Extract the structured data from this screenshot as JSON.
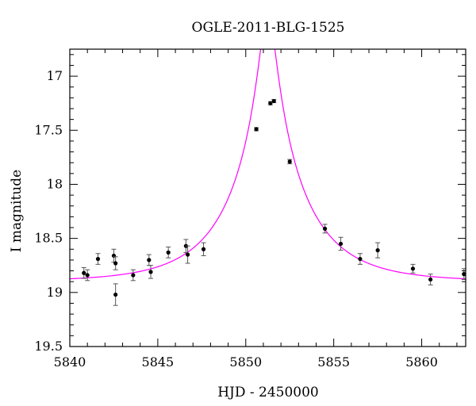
{
  "chart_data": {
    "type": "scatter",
    "title": "OGLE-2011-BLG-1525",
    "xlabel": "HJD - 2450000",
    "ylabel": "I magnitude",
    "xlim": [
      5840,
      5862.5
    ],
    "ylim": [
      19.5,
      16.75
    ],
    "y_inverted": true,
    "x_ticks": [
      5840,
      5845,
      5850,
      5855,
      5860
    ],
    "x_tick_labels": [
      "5840",
      "5845",
      "5850",
      "5855",
      "5860"
    ],
    "y_ticks": [
      17,
      17.5,
      18,
      18.5,
      19,
      19.5
    ],
    "y_tick_labels": [
      "17",
      "17.5",
      "18",
      "18.5",
      "19",
      "19.5"
    ],
    "grid": false,
    "series": [
      {
        "kind": "points_with_errorbars",
        "color": "#000000",
        "points": [
          {
            "x": 5840.8,
            "y": 18.82,
            "err": 0.05
          },
          {
            "x": 5841.0,
            "y": 18.84,
            "err": 0.05
          },
          {
            "x": 5841.6,
            "y": 18.69,
            "err": 0.05
          },
          {
            "x": 5842.5,
            "y": 18.66,
            "err": 0.06
          },
          {
            "x": 5842.6,
            "y": 18.73,
            "err": 0.06
          },
          {
            "x": 5842.6,
            "y": 19.02,
            "err": 0.1
          },
          {
            "x": 5843.6,
            "y": 18.84,
            "err": 0.05
          },
          {
            "x": 5844.5,
            "y": 18.7,
            "err": 0.05
          },
          {
            "x": 5844.6,
            "y": 18.81,
            "err": 0.06
          },
          {
            "x": 5845.6,
            "y": 18.63,
            "err": 0.05
          },
          {
            "x": 5846.6,
            "y": 18.57,
            "err": 0.06
          },
          {
            "x": 5846.7,
            "y": 18.65,
            "err": 0.08
          },
          {
            "x": 5847.6,
            "y": 18.6,
            "err": 0.06
          },
          {
            "x": 5850.6,
            "y": 17.49,
            "err": 0.015
          },
          {
            "x": 5851.4,
            "y": 17.25,
            "err": 0.015
          },
          {
            "x": 5851.6,
            "y": 17.23,
            "err": 0.015
          },
          {
            "x": 5852.5,
            "y": 17.79,
            "err": 0.02
          },
          {
            "x": 5854.5,
            "y": 18.41,
            "err": 0.04
          },
          {
            "x": 5855.4,
            "y": 18.55,
            "err": 0.06
          },
          {
            "x": 5856.5,
            "y": 18.69,
            "err": 0.05
          },
          {
            "x": 5857.5,
            "y": 18.61,
            "err": 0.07
          },
          {
            "x": 5859.5,
            "y": 18.78,
            "err": 0.04
          },
          {
            "x": 5860.5,
            "y": 18.88,
            "err": 0.05
          },
          {
            "x": 5862.4,
            "y": 18.83,
            "err": 0.05
          }
        ]
      },
      {
        "kind": "model_curve",
        "color": "#ff00ff",
        "t0": 5851.25,
        "tE": 4.2,
        "u0": 0.1,
        "baseline_mag": 18.9,
        "x_start": 5840,
        "x_end": 5862.5
      }
    ]
  }
}
